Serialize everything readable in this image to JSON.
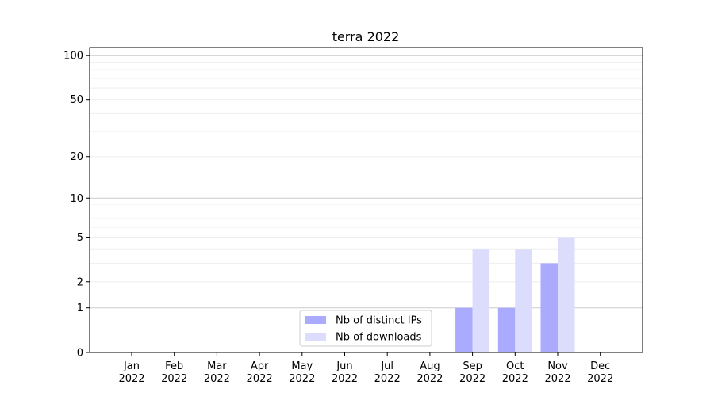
{
  "chart_data": {
    "type": "bar",
    "title": "terra 2022",
    "xlabel": "",
    "ylabel": "",
    "yscale": "log(1+y)",
    "ylim": [
      0,
      113
    ],
    "grid": true,
    "legend_placement": "lower-center",
    "categories": [
      "Jan\n2022",
      "Feb\n2022",
      "Mar\n2022",
      "Apr\n2022",
      "May\n2022",
      "Jun\n2022",
      "Jul\n2022",
      "Aug\n2022",
      "Sep\n2022",
      "Oct\n2022",
      "Nov\n2022",
      "Dec\n2022"
    ],
    "y_ticks": [
      0,
      1,
      2,
      5,
      10,
      20,
      50,
      100
    ],
    "y_minor_grid": [
      3,
      4,
      6,
      7,
      8,
      9,
      30,
      40,
      60,
      70,
      80,
      90
    ],
    "series": [
      {
        "name": "Nb of distinct IPs",
        "color": "#aaaaff",
        "values": [
          0,
          0,
          0,
          0,
          0,
          0,
          0,
          0,
          1,
          1,
          3,
          0
        ]
      },
      {
        "name": "Nb of downloads",
        "color": "#dcdcfc",
        "values": [
          0,
          0,
          0,
          0,
          0,
          0,
          0,
          0,
          4,
          4,
          5,
          0
        ]
      }
    ]
  }
}
